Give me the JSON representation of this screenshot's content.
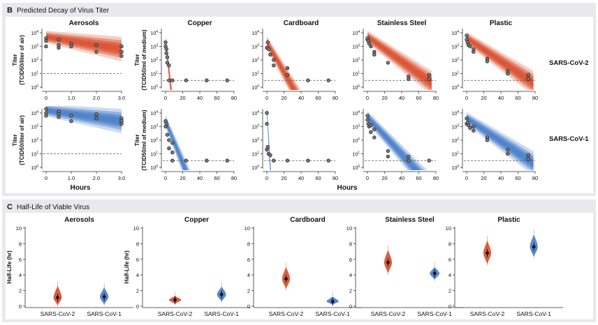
{
  "panels": {
    "b": {
      "letter": "B",
      "title": "Predicted Decay of Virus Titer"
    },
    "c": {
      "letter": "C",
      "title": "Half-Life of Viable Virus"
    }
  },
  "colors": {
    "sars2": "#d9502f",
    "sars1": "#4a7fc9",
    "panel_bg": "#e9e9ed"
  },
  "chart_data": [
    {
      "type": "scatter",
      "title": "Predicted Decay of Virus Titer",
      "xlabel": "Hours",
      "ylabel_air": "Titer (TCID50/liter of air)",
      "ylabel_medium": "Titer (TCID50/ml of medium)",
      "y_scale": "log10",
      "ylim_log10": [
        0,
        4
      ],
      "y_tick_labels": [
        "10^0",
        "10^1",
        "10^2",
        "10^3",
        "10^4"
      ],
      "row_labels": [
        "SARS-CoV-2",
        "SARS-CoV-1"
      ],
      "surfaces": [
        {
          "name": "Aerosols",
          "xlim": [
            0,
            3
          ],
          "xticks": [
            "0",
            "1.0",
            "2.0",
            "3.0"
          ],
          "xtick_values": [
            0,
            1,
            2,
            3
          ],
          "detection_limit_log10": 1.0,
          "series": [
            {
              "name": "SARS-CoV-2",
              "decay": {
                "start_log10": 3.7,
                "end_log10": 2.8
              },
              "points": [
                [
                  0,
                  3.6
                ],
                [
                  0,
                  3.4
                ],
                [
                  0,
                  3.0
                ],
                [
                  0.5,
                  3.5
                ],
                [
                  0.5,
                  3.1
                ],
                [
                  0.5,
                  2.9
                ],
                [
                  1,
                  3.2
                ],
                [
                  1,
                  3.0
                ],
                [
                  2,
                  3.1
                ],
                [
                  2,
                  2.6
                ],
                [
                  3,
                  3.0
                ],
                [
                  3,
                  2.6
                ],
                [
                  3,
                  2.3
                ]
              ]
            },
            {
              "name": "SARS-CoV-1",
              "decay": {
                "start_log10": 4.2,
                "end_log10": 3.4
              },
              "points": [
                [
                  0,
                  4.3
                ],
                [
                  0,
                  4.0
                ],
                [
                  0,
                  3.8
                ],
                [
                  0.5,
                  4.1
                ],
                [
                  0.5,
                  3.9
                ],
                [
                  0.5,
                  3.7
                ],
                [
                  1,
                  3.8
                ],
                [
                  1,
                  3.4
                ],
                [
                  2,
                  3.9
                ],
                [
                  2,
                  3.6
                ],
                [
                  3,
                  3.6
                ],
                [
                  3,
                  3.2
                ],
                [
                  3,
                  3.4
                ]
              ]
            }
          ]
        },
        {
          "name": "Copper",
          "xlim": [
            0,
            80
          ],
          "xticks": [
            "0",
            "20",
            "40",
            "60",
            "80"
          ],
          "xtick_values": [
            0,
            20,
            40,
            60,
            80
          ],
          "detection_limit_log10": 0.5,
          "series": [
            {
              "name": "SARS-CoV-2",
              "decay": {
                "start_log10": 3.4,
                "zero_hours": 6
              },
              "points": [
                [
                  0,
                  3.3
                ],
                [
                  0,
                  3.0
                ],
                [
                  1,
                  2.8
                ],
                [
                  1,
                  2.5
                ],
                [
                  2,
                  2.2
                ],
                [
                  2,
                  1.8
                ],
                [
                  4,
                  1.6
                ],
                [
                  4,
                  0.5
                ],
                [
                  8,
                  0.5
                ],
                [
                  24,
                  0.5
                ],
                [
                  48,
                  0.5
                ],
                [
                  72,
                  0.5
                ]
              ]
            },
            {
              "name": "SARS-CoV-1",
              "decay": {
                "start_log10": 3.4,
                "zero_hours": 22
              },
              "points": [
                [
                  0,
                  3.4
                ],
                [
                  0,
                  3.0
                ],
                [
                  1,
                  3.2
                ],
                [
                  2,
                  2.4
                ],
                [
                  4,
                  2.0
                ],
                [
                  4,
                  1.4
                ],
                [
                  8,
                  1.8
                ],
                [
                  8,
                  1.1
                ],
                [
                  8,
                  0.5
                ],
                [
                  24,
                  0.5
                ],
                [
                  48,
                  0.5
                ],
                [
                  72,
                  0.5
                ]
              ]
            }
          ]
        },
        {
          "name": "Cardboard",
          "xlim": [
            0,
            80
          ],
          "xticks": [
            "0",
            "20",
            "40",
            "60",
            "80"
          ],
          "xtick_values": [
            0,
            20,
            40,
            60,
            80
          ],
          "detection_limit_log10": 0.5,
          "series": [
            {
              "name": "SARS-CoV-2",
              "decay": {
                "start_log10": 3.3,
                "zero_hours": 30
              },
              "points": [
                [
                  0,
                  2.9
                ],
                [
                  1,
                  3.3
                ],
                [
                  2,
                  2.8
                ],
                [
                  4,
                  2.4
                ],
                [
                  8,
                  2.0
                ],
                [
                  8,
                  1.6
                ],
                [
                  24,
                  1.4
                ],
                [
                  24,
                  0.9
                ],
                [
                  48,
                  0.5
                ],
                [
                  72,
                  0.5
                ]
              ]
            },
            {
              "name": "SARS-CoV-1",
              "decay": {
                "start_log10": 4.2,
                "zero_hours": 4
              },
              "points": [
                [
                  0,
                  4.0
                ],
                [
                  0,
                  3.2
                ],
                [
                  0,
                  1.3
                ],
                [
                  1,
                  1.5
                ],
                [
                  2,
                  1.0
                ],
                [
                  4,
                  0.9
                ],
                [
                  8,
                  0.5
                ],
                [
                  24,
                  0.5
                ],
                [
                  48,
                  0.5
                ],
                [
                  72,
                  0.5
                ]
              ]
            }
          ]
        },
        {
          "name": "Stainless Steel",
          "xlim": [
            0,
            80
          ],
          "xticks": [
            "0",
            "20",
            "40",
            "60",
            "80"
          ],
          "xtick_values": [
            0,
            20,
            40,
            60,
            80
          ],
          "detection_limit_log10": 0.5,
          "series": [
            {
              "name": "SARS-CoV-2",
              "decay": {
                "start_log10": 3.7,
                "end_log10": 0.3,
                "end_hours": 75
              },
              "points": [
                [
                  0,
                  3.5
                ],
                [
                  0,
                  3.6
                ],
                [
                  1,
                  3.4
                ],
                [
                  2,
                  3.2
                ],
                [
                  4,
                  3.0
                ],
                [
                  8,
                  2.6
                ],
                [
                  8,
                  2.4
                ],
                [
                  24,
                  1.8
                ],
                [
                  48,
                  0.8
                ],
                [
                  48,
                  0.6
                ],
                [
                  72,
                  0.9
                ],
                [
                  72,
                  0.6
                ]
              ]
            },
            {
              "name": "SARS-CoV-1",
              "decay": {
                "start_log10": 3.7,
                "zero_hours": 54
              },
              "points": [
                [
                  0,
                  3.8
                ],
                [
                  0,
                  3.5
                ],
                [
                  1,
                  3.2
                ],
                [
                  2,
                  3.0
                ],
                [
                  4,
                  3.1
                ],
                [
                  4,
                  2.6
                ],
                [
                  8,
                  2.8
                ],
                [
                  8,
                  2.2
                ],
                [
                  24,
                  1.2
                ],
                [
                  24,
                  0.8
                ],
                [
                  48,
                  0.8
                ],
                [
                  48,
                  0.5
                ],
                [
                  72,
                  0.5
                ]
              ]
            }
          ]
        },
        {
          "name": "Plastic",
          "xlim": [
            0,
            80
          ],
          "xticks": [
            "0",
            "20",
            "40",
            "60",
            "80"
          ],
          "xtick_values": [
            0,
            20,
            40,
            60,
            80
          ],
          "detection_limit_log10": 0.5,
          "series": [
            {
              "name": "SARS-CoV-2",
              "decay": {
                "start_log10": 3.6,
                "end_log10": 0.3,
                "end_hours": 78
              },
              "points": [
                [
                  0,
                  3.8
                ],
                [
                  0,
                  3.5
                ],
                [
                  1,
                  3.3
                ],
                [
                  2,
                  3.1
                ],
                [
                  4,
                  3.0
                ],
                [
                  8,
                  2.8
                ],
                [
                  8,
                  2.6
                ],
                [
                  24,
                  2.1
                ],
                [
                  24,
                  1.9
                ],
                [
                  48,
                  1.2
                ],
                [
                  48,
                  1.0
                ],
                [
                  72,
                  0.9
                ],
                [
                  72,
                  0.6
                ]
              ]
            },
            {
              "name": "SARS-CoV-1",
              "decay": {
                "start_log10": 3.6,
                "end_log10": 0.3,
                "end_hours": 78
              },
              "points": [
                [
                  0,
                  3.6
                ],
                [
                  0,
                  3.2
                ],
                [
                  1,
                  3.3
                ],
                [
                  2,
                  3.1
                ],
                [
                  4,
                  2.9
                ],
                [
                  8,
                  3.0
                ],
                [
                  8,
                  2.7
                ],
                [
                  24,
                  2.2
                ],
                [
                  24,
                  2.0
                ],
                [
                  48,
                  1.3
                ],
                [
                  48,
                  1.0
                ],
                [
                  72,
                  0.9
                ],
                [
                  72,
                  0.6
                ]
              ]
            }
          ]
        }
      ]
    },
    {
      "type": "violin",
      "title": "Half-Life of Viable Virus",
      "ylabel": "Half-Life (hr)",
      "ylim": [
        0,
        10
      ],
      "yticks": [
        0,
        2,
        4,
        6,
        8,
        10
      ],
      "categories": [
        "SARS-CoV-2",
        "SARS-CoV-1"
      ],
      "surfaces": [
        {
          "name": "Aerosols",
          "median": [
            1.1,
            1.2
          ],
          "low": [
            0.1,
            0.2
          ],
          "high": [
            2.6,
            2.4
          ]
        },
        {
          "name": "Copper",
          "median": [
            0.8,
            1.5
          ],
          "low": [
            0.3,
            0.6
          ],
          "high": [
            1.3,
            2.5
          ]
        },
        {
          "name": "Cardboard",
          "median": [
            3.5,
            0.6
          ],
          "low": [
            2.2,
            0.2
          ],
          "high": [
            5.0,
            1.2
          ]
        },
        {
          "name": "Stainless Steel",
          "median": [
            5.6,
            4.2
          ],
          "low": [
            4.2,
            3.4
          ],
          "high": [
            7.2,
            5.0
          ]
        },
        {
          "name": "Plastic",
          "median": [
            6.8,
            7.6
          ],
          "low": [
            5.4,
            6.3
          ],
          "high": [
            8.4,
            9.2
          ]
        }
      ]
    }
  ]
}
